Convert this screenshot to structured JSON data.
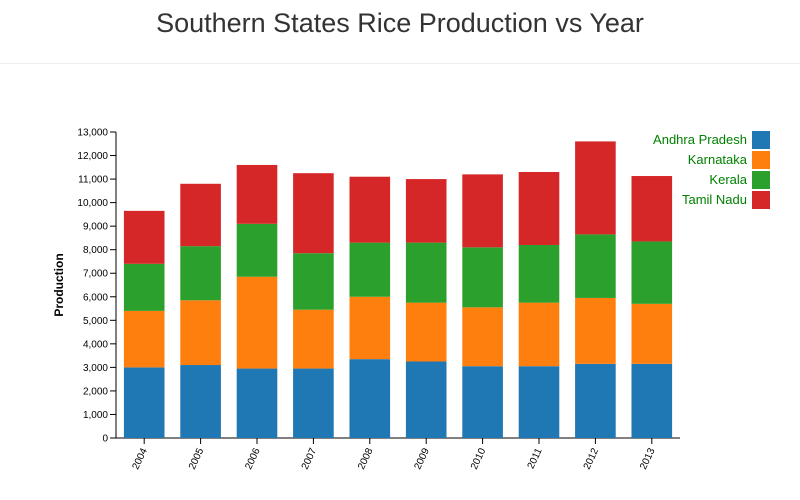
{
  "page": {
    "title": "Southern States Rice Production vs Year"
  },
  "colors": {
    "Andhra Pradesh": "#1f77b4",
    "Karnataka": "#ff7f0e",
    "Kerala": "#2ca02c",
    "Tamil Nadu": "#d62728",
    "legend_text": "#008000"
  },
  "chart_data": {
    "type": "bar",
    "stacked": true,
    "title": "",
    "xlabel": "",
    "ylabel": "Production",
    "ylim": [
      0,
      13000
    ],
    "yticks": [
      0,
      1000,
      2000,
      3000,
      4000,
      5000,
      6000,
      7000,
      8000,
      9000,
      10000,
      11000,
      12000,
      13000
    ],
    "ytick_labels": [
      "0",
      "1,000",
      "2,000",
      "3,000",
      "4,000",
      "5,000",
      "6,000",
      "7,000",
      "8,000",
      "9,000",
      "10,000",
      "11,000",
      "12,000",
      "13,000"
    ],
    "categories": [
      "2004",
      "2005",
      "2006",
      "2007",
      "2008",
      "2009",
      "2010",
      "2011",
      "2012",
      "2013"
    ],
    "grid": false,
    "legend_position": "top-right",
    "series": [
      {
        "name": "Andhra Pradesh",
        "values": [
          3000,
          3100,
          2950,
          2950,
          3350,
          3250,
          3050,
          3050,
          3150,
          3150
        ]
      },
      {
        "name": "Karnataka",
        "values": [
          2400,
          2750,
          3900,
          2500,
          2650,
          2500,
          2500,
          2700,
          2800,
          2550
        ]
      },
      {
        "name": "Kerala",
        "values": [
          2000,
          2300,
          2250,
          2400,
          2300,
          2550,
          2550,
          2450,
          2700,
          2650
        ]
      },
      {
        "name": "Tamil Nadu",
        "values": [
          2250,
          2650,
          2500,
          3400,
          2800,
          2700,
          3100,
          3100,
          3950,
          2780
        ]
      }
    ]
  }
}
